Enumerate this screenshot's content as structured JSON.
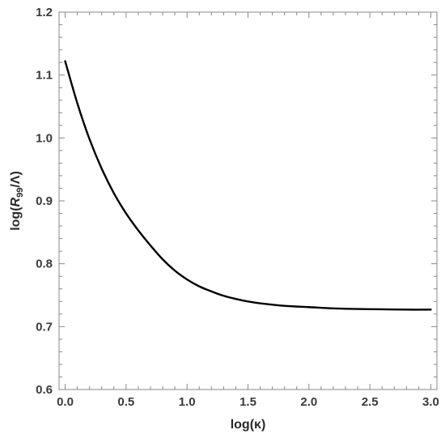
{
  "chart_data": {
    "type": "line",
    "title": "",
    "xlabel": "log(κ)",
    "ylabel": {
      "prefix": "log(",
      "symbol": "R",
      "subscript": "99",
      "suffix": "/Λ)"
    },
    "xlim": [
      -0.05,
      3.05
    ],
    "ylim": [
      0.6,
      1.2
    ],
    "xticks": [
      "0.0",
      "0.5",
      "1.0",
      "1.5",
      "2.0",
      "2.5",
      "3.0"
    ],
    "yticks": [
      "0.6",
      "0.7",
      "0.8",
      "0.9",
      "1.0",
      "1.1",
      "1.2"
    ],
    "grid": false,
    "legend": "none",
    "series": [
      {
        "color": "#000000",
        "x": [
          0.0,
          0.1,
          0.2,
          0.3,
          0.4,
          0.5,
          0.6,
          0.7,
          0.8,
          0.9,
          1.0,
          1.1,
          1.2,
          1.3,
          1.4,
          1.5,
          1.6,
          1.8,
          2.0,
          2.2,
          2.4,
          2.6,
          2.8,
          3.0
        ],
        "y": [
          1.122,
          1.055,
          0.998,
          0.951,
          0.912,
          0.88,
          0.853,
          0.829,
          0.807,
          0.789,
          0.775,
          0.764,
          0.756,
          0.749,
          0.744,
          0.74,
          0.737,
          0.733,
          0.731,
          0.729,
          0.728,
          0.7275,
          0.727,
          0.727
        ]
      }
    ]
  }
}
